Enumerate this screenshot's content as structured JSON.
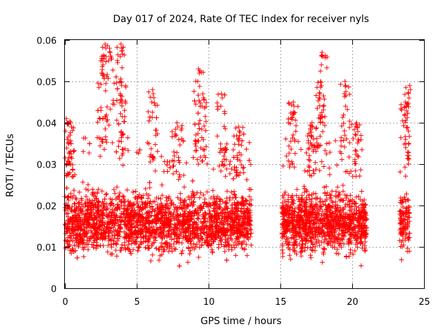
{
  "chart_data": {
    "type": "scatter",
    "title": "Day 017 of 2024, Rate Of TEC Index for receiver nyls",
    "xlabel": "GPS time / hours",
    "ylabel": "ROTI / TECUs",
    "xlim": [
      0,
      25
    ],
    "ylim": [
      0,
      0.06
    ],
    "xticks": [
      "0",
      "5",
      "10",
      "15",
      "20",
      "25"
    ],
    "xtick_values": [
      0,
      5,
      10,
      15,
      20,
      25
    ],
    "yticks": [
      "0",
      "0.01",
      "0.02",
      "0.03",
      "0.04",
      "0.05",
      "0.06"
    ],
    "ytick_values": [
      0,
      0.01,
      0.02,
      0.03,
      0.04,
      0.05,
      0.06
    ],
    "grid": true,
    "marker": "+",
    "color": "#ff0000",
    "series": [
      {
        "name": "ROTI",
        "coverage_hours": [
          [
            0.0,
            13.0
          ],
          [
            15.1,
            21.0
          ],
          [
            23.3,
            24.0
          ]
        ],
        "typical_range": [
          0.005,
          0.027
        ],
        "peaks": [
          {
            "x": 0.1,
            "y": 0.041
          },
          {
            "x": 0.4,
            "y": 0.04
          },
          {
            "x": 2.6,
            "y": 0.055
          },
          {
            "x": 2.8,
            "y": 0.059
          },
          {
            "x": 3.1,
            "y": 0.058
          },
          {
            "x": 3.9,
            "y": 0.059
          },
          {
            "x": 3.9,
            "y": 0.05
          },
          {
            "x": 6.1,
            "y": 0.048
          },
          {
            "x": 7.8,
            "y": 0.04
          },
          {
            "x": 9.3,
            "y": 0.053
          },
          {
            "x": 9.6,
            "y": 0.047
          },
          {
            "x": 10.9,
            "y": 0.047
          },
          {
            "x": 12.1,
            "y": 0.039
          },
          {
            "x": 15.9,
            "y": 0.045
          },
          {
            "x": 17.2,
            "y": 0.04
          },
          {
            "x": 17.9,
            "y": 0.057
          },
          {
            "x": 17.8,
            "y": 0.05
          },
          {
            "x": 19.5,
            "y": 0.05
          },
          {
            "x": 20.3,
            "y": 0.04
          },
          {
            "x": 23.7,
            "y": 0.045
          },
          {
            "x": 24.0,
            "y": 0.049
          }
        ]
      }
    ]
  }
}
